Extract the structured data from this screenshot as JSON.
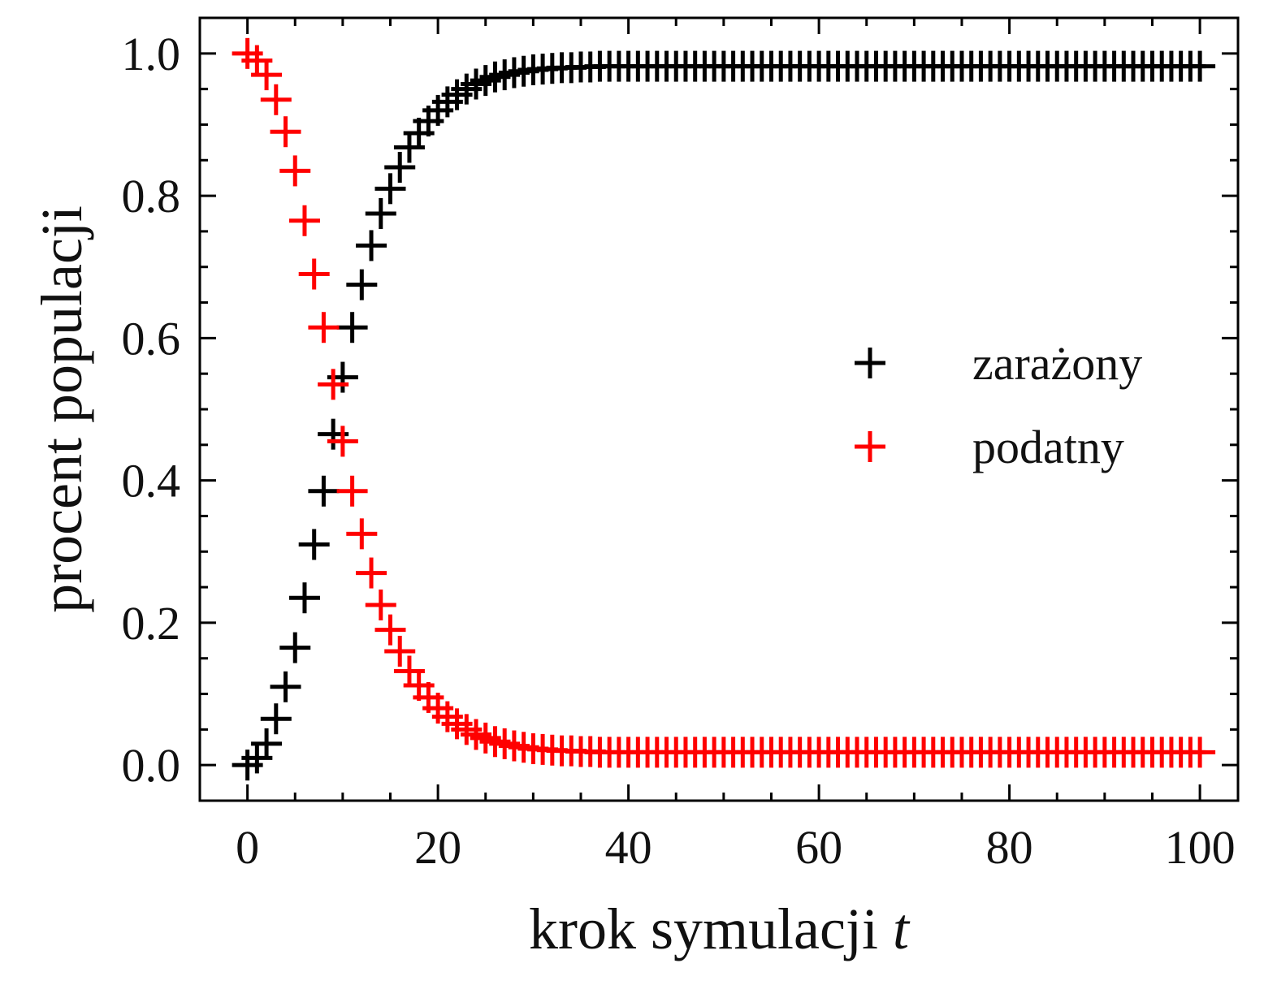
{
  "chart_data": {
    "type": "scatter",
    "xlabel": "krok symulacji",
    "xlabel_var": "t",
    "ylabel": "procent populacji",
    "xlim": [
      -5,
      104
    ],
    "ylim": [
      -0.05,
      1.05
    ],
    "x_ticks": [
      0,
      20,
      40,
      60,
      80,
      100
    ],
    "x_tick_labels": [
      "0",
      "20",
      "40",
      "60",
      "80",
      "100"
    ],
    "y_ticks": [
      0.0,
      0.2,
      0.4,
      0.6,
      0.8,
      1.0
    ],
    "y_tick_labels": [
      "0.0",
      "0.2",
      "0.4",
      "0.6",
      "0.8",
      "1.0"
    ],
    "grid": false,
    "legend_position": "center-right",
    "marker": "plus",
    "series": [
      {
        "name": "zarażony",
        "color": "#000000",
        "x": [
          0,
          1,
          2,
          3,
          4,
          5,
          6,
          7,
          8,
          9,
          10,
          11,
          12,
          13,
          14,
          15,
          16,
          17,
          18,
          19,
          20,
          21,
          22,
          23,
          24,
          25,
          26,
          27,
          28,
          29,
          30,
          31,
          32,
          33,
          34,
          35,
          36,
          37,
          38,
          39,
          40,
          41,
          42,
          43,
          44,
          45,
          46,
          47,
          48,
          49,
          50,
          51,
          52,
          53,
          54,
          55,
          56,
          57,
          58,
          59,
          60,
          61,
          62,
          63,
          64,
          65,
          66,
          67,
          68,
          69,
          70,
          71,
          72,
          73,
          74,
          75,
          76,
          77,
          78,
          79,
          80,
          81,
          82,
          83,
          84,
          85,
          86,
          87,
          88,
          89,
          90,
          91,
          92,
          93,
          94,
          95,
          96,
          97,
          98,
          99,
          100
        ],
        "y": [
          0.0,
          0.01,
          0.03,
          0.065,
          0.11,
          0.165,
          0.235,
          0.31,
          0.385,
          0.465,
          0.545,
          0.615,
          0.675,
          0.73,
          0.775,
          0.81,
          0.84,
          0.868,
          0.888,
          0.905,
          0.92,
          0.932,
          0.942,
          0.95,
          0.957,
          0.962,
          0.967,
          0.97,
          0.973,
          0.975,
          0.977,
          0.978,
          0.979,
          0.98,
          0.98,
          0.981,
          0.981,
          0.982,
          0.982,
          0.982,
          0.982,
          0.982,
          0.982,
          0.982,
          0.982,
          0.982,
          0.982,
          0.982,
          0.982,
          0.982,
          0.982,
          0.982,
          0.982,
          0.982,
          0.982,
          0.982,
          0.982,
          0.982,
          0.982,
          0.982,
          0.982,
          0.982,
          0.982,
          0.982,
          0.982,
          0.982,
          0.982,
          0.982,
          0.982,
          0.982,
          0.982,
          0.982,
          0.982,
          0.982,
          0.982,
          0.982,
          0.982,
          0.982,
          0.982,
          0.982,
          0.982,
          0.982,
          0.982,
          0.982,
          0.982,
          0.982,
          0.982,
          0.982,
          0.982,
          0.982,
          0.982,
          0.982,
          0.982,
          0.982,
          0.982,
          0.982,
          0.982,
          0.982,
          0.982,
          0.982,
          0.982
        ]
      },
      {
        "name": "podatny",
        "color": "#ff0000",
        "x": [
          0,
          1,
          2,
          3,
          4,
          5,
          6,
          7,
          8,
          9,
          10,
          11,
          12,
          13,
          14,
          15,
          16,
          17,
          18,
          19,
          20,
          21,
          22,
          23,
          24,
          25,
          26,
          27,
          28,
          29,
          30,
          31,
          32,
          33,
          34,
          35,
          36,
          37,
          38,
          39,
          40,
          41,
          42,
          43,
          44,
          45,
          46,
          47,
          48,
          49,
          50,
          51,
          52,
          53,
          54,
          55,
          56,
          57,
          58,
          59,
          60,
          61,
          62,
          63,
          64,
          65,
          66,
          67,
          68,
          69,
          70,
          71,
          72,
          73,
          74,
          75,
          76,
          77,
          78,
          79,
          80,
          81,
          82,
          83,
          84,
          85,
          86,
          87,
          88,
          89,
          90,
          91,
          92,
          93,
          94,
          95,
          96,
          97,
          98,
          99,
          100
        ],
        "y": [
          1.0,
          0.99,
          0.97,
          0.935,
          0.89,
          0.835,
          0.765,
          0.69,
          0.615,
          0.535,
          0.455,
          0.385,
          0.325,
          0.27,
          0.225,
          0.19,
          0.16,
          0.132,
          0.112,
          0.095,
          0.08,
          0.068,
          0.058,
          0.05,
          0.043,
          0.038,
          0.033,
          0.03,
          0.027,
          0.025,
          0.023,
          0.022,
          0.021,
          0.02,
          0.02,
          0.019,
          0.019,
          0.018,
          0.018,
          0.018,
          0.018,
          0.018,
          0.018,
          0.018,
          0.018,
          0.018,
          0.018,
          0.018,
          0.018,
          0.018,
          0.018,
          0.018,
          0.018,
          0.018,
          0.018,
          0.018,
          0.018,
          0.018,
          0.018,
          0.018,
          0.018,
          0.018,
          0.018,
          0.018,
          0.018,
          0.018,
          0.018,
          0.018,
          0.018,
          0.018,
          0.018,
          0.018,
          0.018,
          0.018,
          0.018,
          0.018,
          0.018,
          0.018,
          0.018,
          0.018,
          0.018,
          0.018,
          0.018,
          0.018,
          0.018,
          0.018,
          0.018,
          0.018,
          0.018,
          0.018,
          0.018,
          0.018,
          0.018,
          0.018,
          0.018,
          0.018,
          0.018,
          0.018,
          0.018,
          0.018,
          0.018
        ]
      }
    ]
  }
}
